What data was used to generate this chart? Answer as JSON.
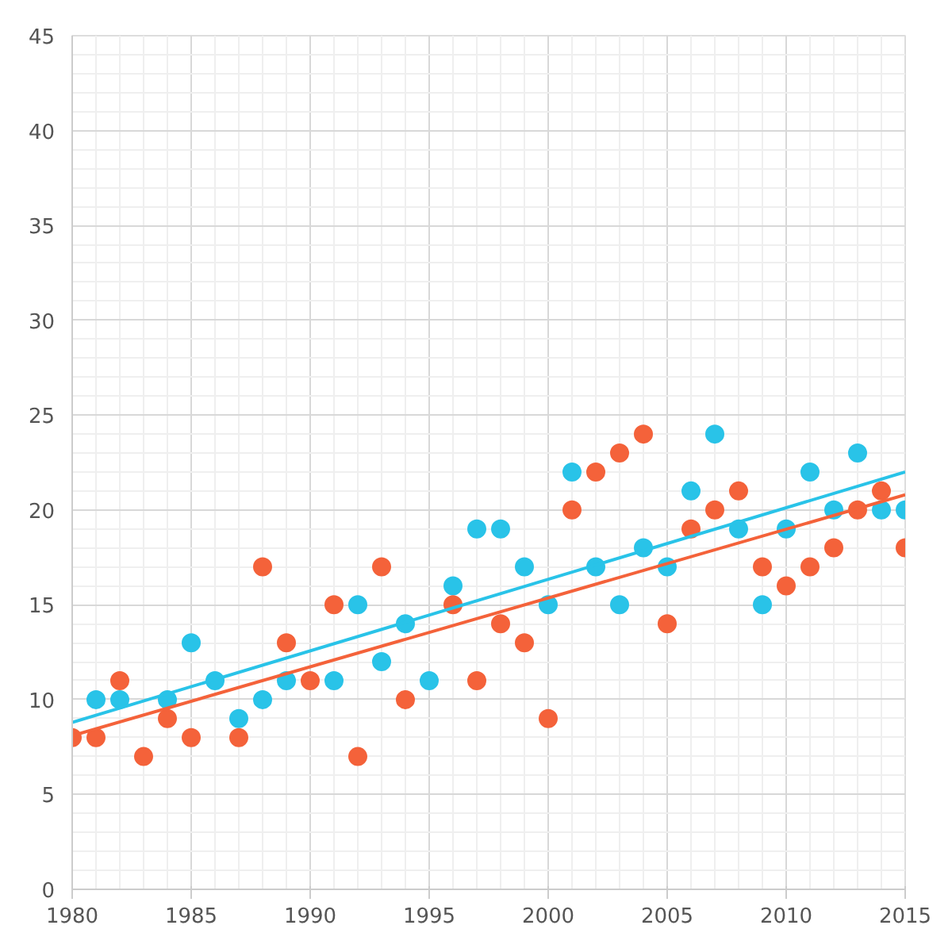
{
  "chart_data": {
    "type": "scatter",
    "xlim": [
      1980,
      2015
    ],
    "ylim": [
      0,
      45
    ],
    "xticks": [
      1980,
      1985,
      1990,
      1995,
      2000,
      2005,
      2010,
      2015
    ],
    "yticks": [
      0,
      5,
      10,
      15,
      20,
      25,
      30,
      35,
      40,
      45
    ],
    "grid": true,
    "marker": "circle",
    "series": [
      {
        "color": "#29c3e8",
        "x": [
          1981,
          1982,
          1984,
          1985,
          1986,
          1987,
          1988,
          1989,
          1991,
          1992,
          1993,
          1994,
          1995,
          1996,
          1997,
          1998,
          1999,
          2000,
          2001,
          2002,
          2003,
          2004,
          2005,
          2006,
          2007,
          2008,
          2009,
          2010,
          2011,
          2012,
          2013,
          2014,
          2015
        ],
        "values": [
          10,
          10,
          10,
          13,
          11,
          9,
          10,
          11,
          11,
          15,
          12,
          14,
          11,
          16,
          19,
          19,
          17,
          15,
          22,
          17,
          15,
          18,
          17,
          21,
          24,
          19,
          15,
          19,
          22,
          20,
          23,
          20,
          20
        ]
      },
      {
        "color": "#f4623a",
        "x": [
          1980,
          1981,
          1982,
          1983,
          1984,
          1985,
          1987,
          1988,
          1989,
          1990,
          1991,
          1992,
          1993,
          1994,
          1996,
          1997,
          1998,
          1999,
          2000,
          2001,
          2002,
          2003,
          2004,
          2005,
          2006,
          2007,
          2008,
          2009,
          2010,
          2011,
          2012,
          2013,
          2014,
          2015
        ],
        "values": [
          8,
          8,
          11,
          7,
          9,
          8,
          8,
          17,
          13,
          11,
          15,
          7,
          17,
          10,
          15,
          11,
          14,
          13,
          9,
          20,
          22,
          23,
          24,
          14,
          19,
          20,
          21,
          17,
          16,
          17,
          18,
          20,
          21,
          18
        ]
      },
      {
        "type": "line",
        "marker": "none",
        "color": "#29c3e8",
        "x": [
          1980,
          2015
        ],
        "values": [
          8.8,
          22
        ]
      },
      {
        "type": "line",
        "marker": "none",
        "color": "#f4623a",
        "x": [
          1980,
          2015
        ],
        "values": [
          8.1,
          20.8
        ]
      }
    ]
  }
}
